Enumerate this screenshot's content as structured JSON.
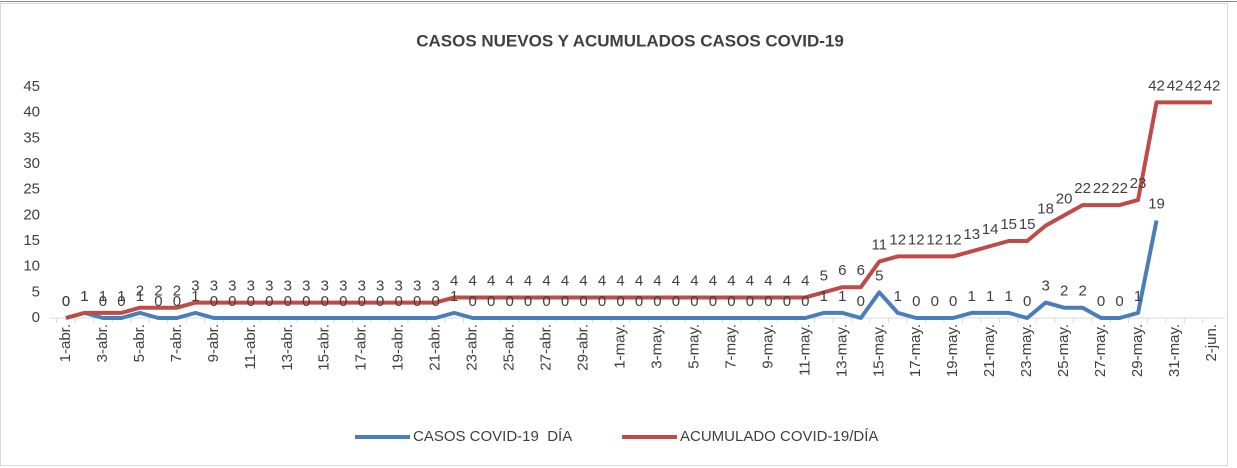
{
  "chart_data": {
    "type": "line",
    "title": "CASOS NUEVOS Y ACUMULADOS CASOS COVID-19",
    "categories": [
      "1-abr.",
      null,
      "3-abr.",
      null,
      "5-abr.",
      null,
      "7-abr.",
      null,
      "9-abr.",
      null,
      "11-abr.",
      null,
      "13-abr.",
      null,
      "15-abr.",
      null,
      "17-abr.",
      null,
      "19-abr.",
      null,
      "21-abr.",
      null,
      "23-abr.",
      null,
      "25-abr.",
      null,
      "27-abr.",
      null,
      "29-abr.",
      null,
      "1-may.",
      null,
      "3-may.",
      null,
      "5-may.",
      null,
      "7-may.",
      null,
      "9-may.",
      null,
      "11-may.",
      null,
      "13-may.",
      null,
      "15-may.",
      null,
      "17-may.",
      null,
      "19-may.",
      null,
      "21-may.",
      null,
      "23-may.",
      null,
      "25-may.",
      null,
      "27-may.",
      null,
      "29-may.",
      null,
      "31-may.",
      null,
      "2-jun."
    ],
    "series": [
      {
        "name": "CASOS COVID-19  DÍA",
        "color": "#4a7ebb",
        "values": [
          0,
          1,
          0,
          0,
          1,
          0,
          0,
          1,
          0,
          0,
          0,
          0,
          0,
          0,
          0,
          0,
          0,
          0,
          0,
          0,
          0,
          1,
          0,
          0,
          0,
          0,
          0,
          0,
          0,
          0,
          0,
          0,
          0,
          0,
          0,
          0,
          0,
          0,
          0,
          0,
          0,
          1,
          1,
          0,
          5,
          1,
          0,
          0,
          0,
          1,
          1,
          1,
          0,
          3,
          2,
          2,
          0,
          0,
          1,
          19,
          null,
          null,
          null
        ]
      },
      {
        "name": "ACUMULADO COVID-19/DÍA",
        "color": "#be4b48",
        "values": [
          0,
          1,
          1,
          1,
          2,
          2,
          2,
          3,
          3,
          3,
          3,
          3,
          3,
          3,
          3,
          3,
          3,
          3,
          3,
          3,
          3,
          4,
          4,
          4,
          4,
          4,
          4,
          4,
          4,
          4,
          4,
          4,
          4,
          4,
          4,
          4,
          4,
          4,
          4,
          4,
          4,
          5,
          6,
          6,
          11,
          12,
          12,
          12,
          12,
          13,
          14,
          15,
          15,
          18,
          20,
          22,
          22,
          22,
          23,
          42,
          42,
          42,
          42
        ]
      }
    ],
    "ylim": [
      0,
      45
    ],
    "yticks": [
      0,
      5,
      10,
      15,
      20,
      25,
      30,
      35,
      40,
      45
    ],
    "grid": false,
    "legend": "bottom",
    "data_labels": true
  }
}
